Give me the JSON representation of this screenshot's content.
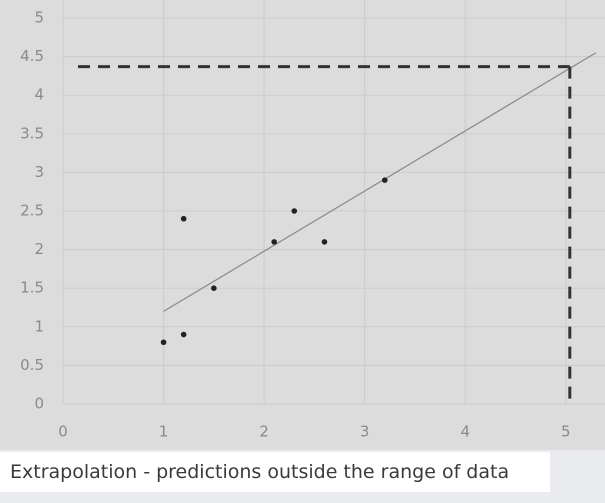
{
  "chart_data": {
    "type": "scatter",
    "x": [
      1,
      1.2,
      1.2,
      1.5,
      2.1,
      2.3,
      2.6,
      3.2
    ],
    "y": [
      0.8,
      0.9,
      2.4,
      1.5,
      2.1,
      2.5,
      2.1,
      2.9
    ],
    "color": "#222222",
    "trendline": {
      "x": [
        1,
        5.3
      ],
      "y": [
        1.2,
        4.55
      ],
      "color": "#888888"
    },
    "extrapolation": {
      "x": 5.04,
      "y": 4.37,
      "color": "#333333"
    },
    "xlim": [
      0,
      5.39
    ],
    "ylim": [
      0,
      5
    ],
    "xticks": [
      0,
      1,
      2,
      3,
      4,
      5
    ],
    "yticks": [
      0,
      0.5,
      1,
      1.5,
      2,
      2.5,
      3,
      3.5,
      4,
      4.5,
      5
    ],
    "grid": true
  },
  "caption": "Extrapolation - predictions outside the range of data"
}
